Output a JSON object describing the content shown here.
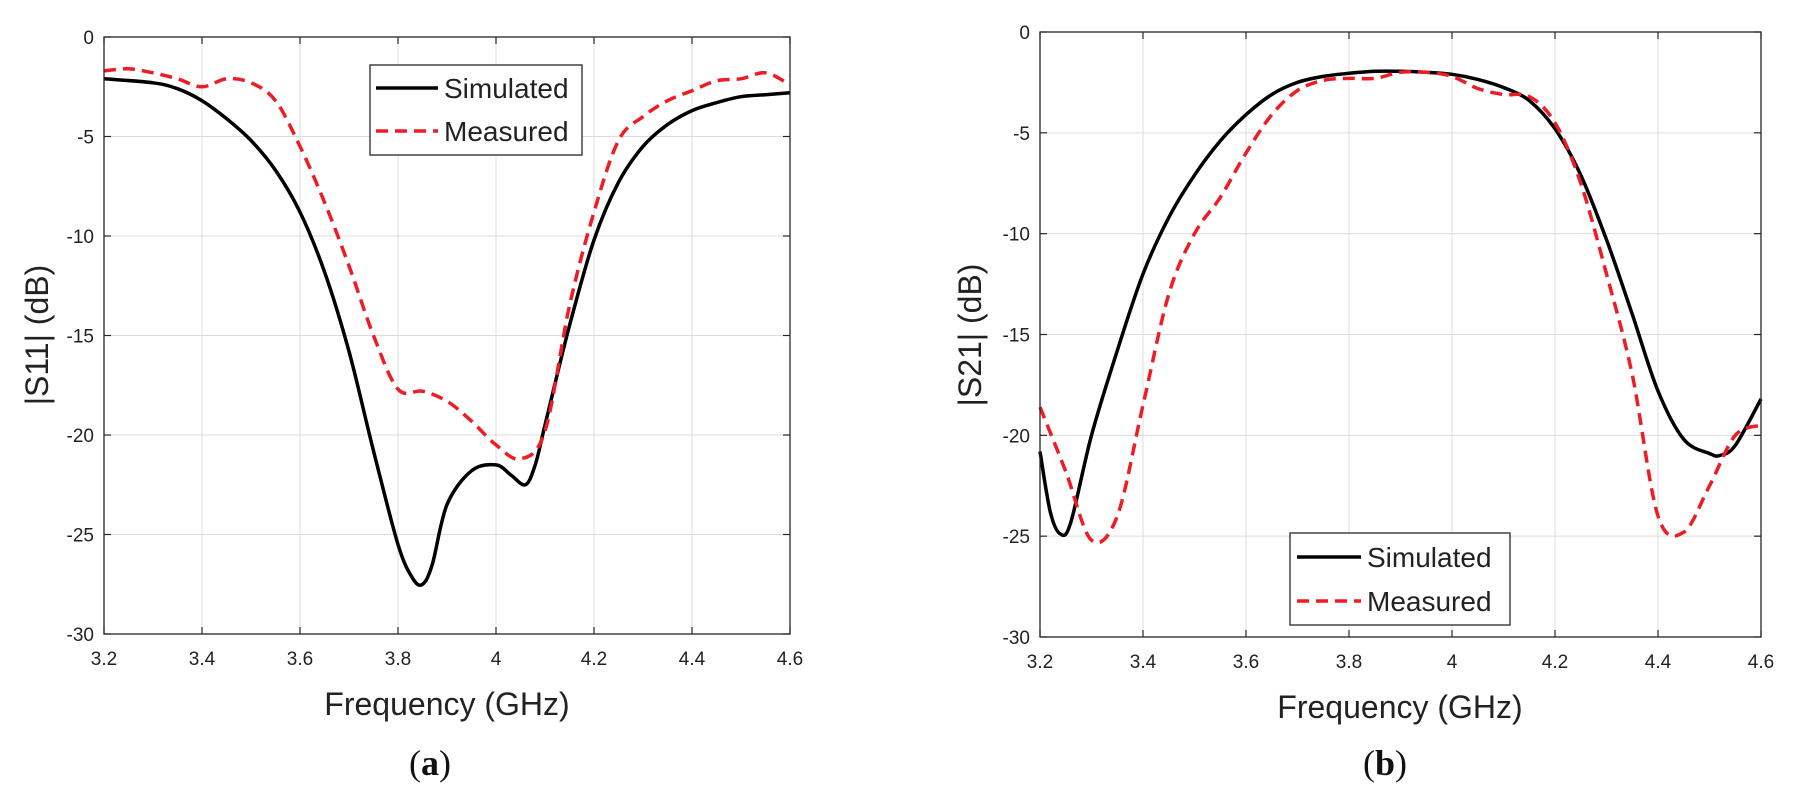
{
  "chart_data": [
    {
      "type": "line",
      "panel": "a",
      "caption_open": "(",
      "caption_letter": "a",
      "caption_close": ")",
      "xlabel": "Frequency (GHz)",
      "ylabel": "|S11| (dB)",
      "xlim": [
        3.2,
        4.6
      ],
      "ylim": [
        -30,
        0
      ],
      "xticks": [
        3.2,
        3.4,
        3.6,
        3.8,
        4,
        4.2,
        4.4,
        4.6
      ],
      "xtick_labels": [
        "3.2",
        "3.4",
        "3.6",
        "3.8",
        "4",
        "4.2",
        "4.4",
        "4.6"
      ],
      "yticks": [
        0,
        -5,
        -10,
        -15,
        -20,
        -25,
        -30
      ],
      "ytick_labels": [
        "0",
        "-5",
        "-10",
        "-15",
        "-20",
        "-25",
        "-30"
      ],
      "grid": true,
      "legend_position": "top-center",
      "series": [
        {
          "name": "Simulated",
          "color": "#000000",
          "dash": "solid",
          "x": [
            3.2,
            3.3,
            3.35,
            3.4,
            3.45,
            3.5,
            3.55,
            3.6,
            3.65,
            3.7,
            3.75,
            3.8,
            3.83,
            3.85,
            3.87,
            3.9,
            3.95,
            4.0,
            4.03,
            4.06,
            4.08,
            4.1,
            4.15,
            4.2,
            4.25,
            4.3,
            4.35,
            4.4,
            4.45,
            4.5,
            4.55,
            4.6
          ],
          "y": [
            -2.1,
            -2.3,
            -2.6,
            -3.2,
            -4.1,
            -5.2,
            -6.7,
            -8.8,
            -11.8,
            -15.8,
            -20.8,
            -25.5,
            -27.2,
            -27.5,
            -26.5,
            -23.5,
            -21.8,
            -21.5,
            -22.0,
            -22.5,
            -21.5,
            -19.5,
            -14.5,
            -10.2,
            -7.3,
            -5.5,
            -4.4,
            -3.7,
            -3.3,
            -3.0,
            -2.9,
            -2.8
          ]
        },
        {
          "name": "Measured",
          "color": "#ee1c25",
          "dash": "dashed",
          "x": [
            3.2,
            3.25,
            3.3,
            3.35,
            3.4,
            3.45,
            3.5,
            3.55,
            3.6,
            3.65,
            3.7,
            3.75,
            3.8,
            3.85,
            3.9,
            3.95,
            4.0,
            4.05,
            4.1,
            4.15,
            4.2,
            4.25,
            4.3,
            4.35,
            4.4,
            4.45,
            4.5,
            4.55,
            4.6
          ],
          "y": [
            -1.7,
            -1.6,
            -1.8,
            -2.1,
            -2.5,
            -2.1,
            -2.3,
            -3.2,
            -5.5,
            -8.3,
            -11.5,
            -15.0,
            -17.7,
            -17.8,
            -18.3,
            -19.3,
            -20.5,
            -21.2,
            -19.8,
            -13.5,
            -8.8,
            -5.2,
            -4.0,
            -3.2,
            -2.7,
            -2.2,
            -2.1,
            -1.8,
            -2.4
          ]
        }
      ]
    },
    {
      "type": "line",
      "panel": "b",
      "caption_open": "(",
      "caption_letter": "b",
      "caption_close": ")",
      "xlabel": "Frequency (GHz)",
      "ylabel": "|S21| (dB)",
      "xlim": [
        3.2,
        4.6
      ],
      "ylim": [
        -30,
        0
      ],
      "xticks": [
        3.2,
        3.4,
        3.6,
        3.8,
        4,
        4.2,
        4.4,
        4.6
      ],
      "xtick_labels": [
        "3.2",
        "3.4",
        "3.6",
        "3.8",
        "4",
        "4.2",
        "4.4",
        "4.6"
      ],
      "yticks": [
        0,
        -5,
        -10,
        -15,
        -20,
        -25,
        -30
      ],
      "ytick_labels": [
        "0",
        "-5",
        "-10",
        "-15",
        "-20",
        "-25",
        "-30"
      ],
      "grid": true,
      "legend_position": "bottom-center",
      "series": [
        {
          "name": "Simulated",
          "color": "#000000",
          "dash": "solid",
          "x": [
            3.2,
            3.22,
            3.24,
            3.26,
            3.3,
            3.35,
            3.4,
            3.45,
            3.5,
            3.55,
            3.6,
            3.65,
            3.7,
            3.75,
            3.8,
            3.85,
            3.9,
            3.95,
            4.0,
            4.05,
            4.1,
            4.15,
            4.2,
            4.25,
            4.3,
            4.35,
            4.4,
            4.45,
            4.5,
            4.52,
            4.55,
            4.6
          ],
          "y": [
            -20.8,
            -23.8,
            -24.9,
            -24.3,
            -20.0,
            -15.8,
            -12.0,
            -9.2,
            -7.1,
            -5.4,
            -4.1,
            -3.1,
            -2.5,
            -2.2,
            -2.05,
            -1.95,
            -1.95,
            -2.0,
            -2.1,
            -2.35,
            -2.75,
            -3.4,
            -4.8,
            -7.1,
            -10.3,
            -14.0,
            -17.8,
            -20.2,
            -20.9,
            -21.0,
            -20.5,
            -18.2
          ]
        },
        {
          "name": "Measured",
          "color": "#ee1c25",
          "dash": "dashed",
          "x": [
            3.2,
            3.25,
            3.3,
            3.35,
            3.4,
            3.45,
            3.5,
            3.55,
            3.6,
            3.65,
            3.7,
            3.75,
            3.8,
            3.85,
            3.9,
            3.95,
            4.0,
            4.05,
            4.1,
            4.15,
            4.2,
            4.25,
            4.3,
            4.35,
            4.4,
            4.45,
            4.5,
            4.55,
            4.6
          ],
          "y": [
            -18.6,
            -21.8,
            -25.2,
            -24.0,
            -18.5,
            -13.0,
            -10.0,
            -8.2,
            -6.0,
            -4.1,
            -2.9,
            -2.4,
            -2.3,
            -2.3,
            -2.0,
            -2.0,
            -2.2,
            -2.8,
            -3.1,
            -3.2,
            -4.5,
            -7.5,
            -12.0,
            -17.0,
            -24.0,
            -24.8,
            -22.5,
            -20.0,
            -19.5
          ]
        }
      ]
    }
  ]
}
